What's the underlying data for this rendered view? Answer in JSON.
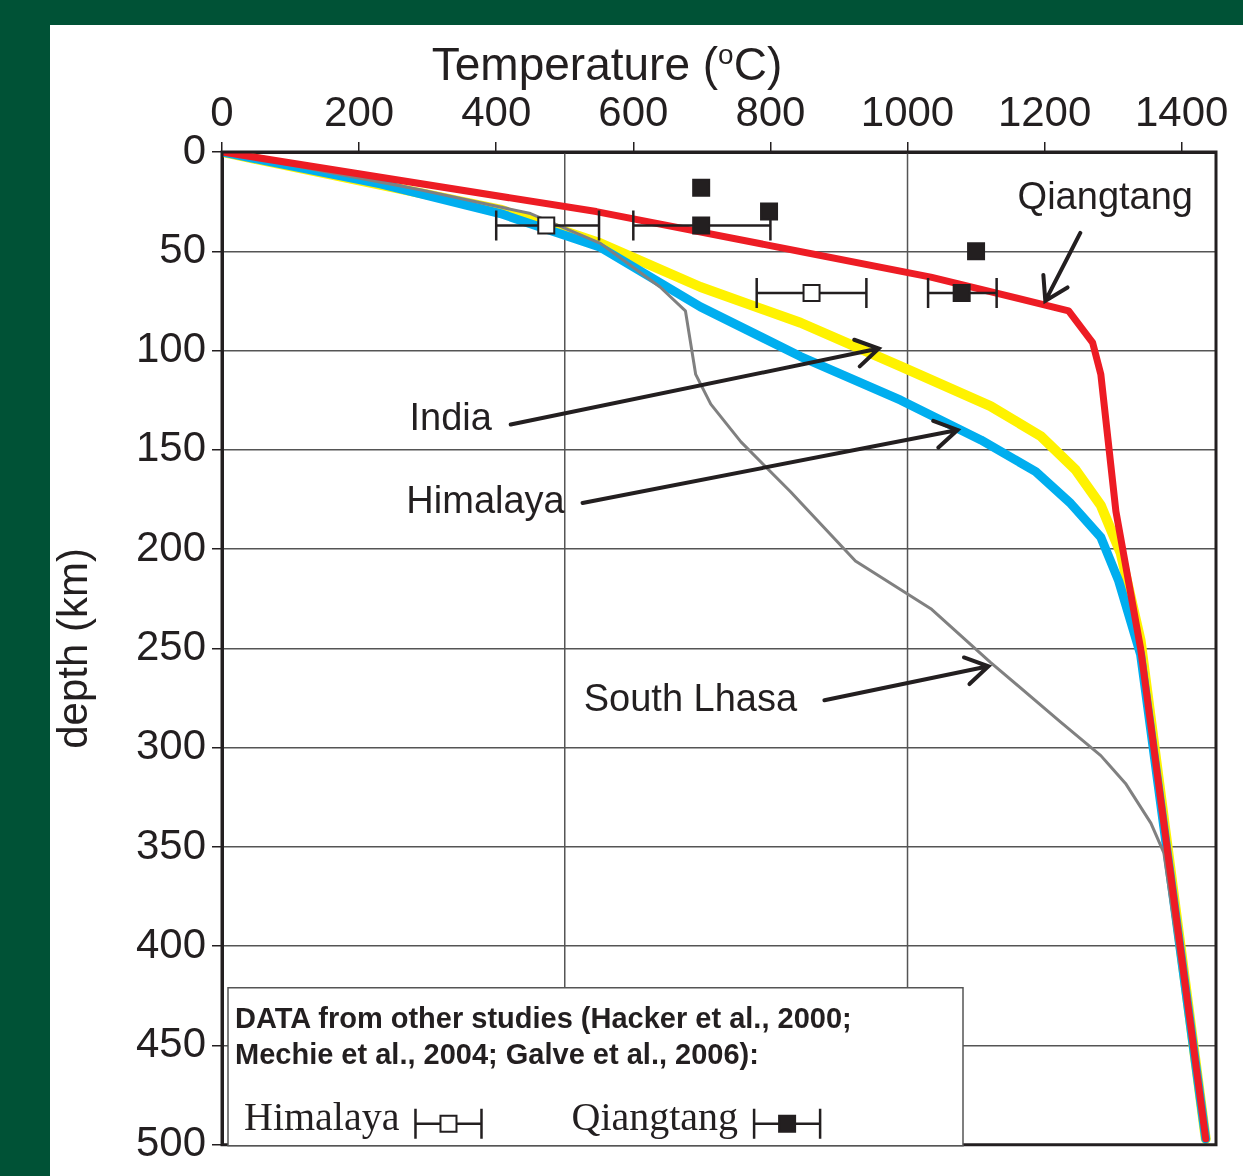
{
  "chart_data": {
    "type": "line",
    "xlabel": "Temperature ($^{o}$C)",
    "ylabel": "depth (km)",
    "xlim": [
      0,
      1450
    ],
    "xticks": [
      0,
      200,
      400,
      600,
      800,
      1000,
      1200,
      1400
    ],
    "ylim": [
      500,
      0
    ],
    "yticks": [
      0,
      50,
      100,
      150,
      200,
      250,
      300,
      350,
      400,
      450,
      500
    ],
    "grid": "y",
    "legend": "bottom left",
    "legend_title": "DATA from other studies (Hacker et al., 2000; Mechie et al., 2004; Galve et al., 2006):",
    "annotations": [
      {
        "text": "India",
        "x": 958,
        "y": 99
      },
      {
        "text": "Himalaya",
        "x": 1073,
        "y": 140
      },
      {
        "text": "South Lhasa",
        "x": 1118,
        "y": 259
      },
      {
        "text": "Qiangtang",
        "x": 1201,
        "y": 75
      }
    ],
    "ref_lines": [
      {
        "axis": "x",
        "value": 500,
        "color": "#555555"
      },
      {
        "axis": "x",
        "value": 1000,
        "color": "#555555"
      }
    ],
    "series": [
      {
        "color": "#fff200",
        "marker": "none",
        "x": [
          0,
          406,
          552,
          698,
          844,
          990,
          1121,
          1194,
          1245,
          1282,
          1311,
          1340,
          1435
        ],
        "values": [
          0,
          29,
          46,
          68,
          86,
          108,
          128,
          143,
          160,
          178,
          202,
          246,
          497
        ]
      },
      {
        "color": "#00aeef",
        "marker": "none",
        "x": [
          0,
          231,
          406,
          552,
          698,
          844,
          990,
          1107,
          1187,
          1238,
          1282,
          1308,
          1340,
          1435
        ],
        "values": [
          0,
          16,
          31,
          48,
          78,
          103,
          125,
          145,
          161,
          177,
          194,
          216,
          253,
          497
        ]
      },
      {
        "color": "#808080",
        "marker": "none",
        "x": [
          0,
          289,
          450,
          552,
          639,
          676,
          691,
          713,
          757,
          829,
          924,
          1034,
          1121,
          1223,
          1282,
          1318,
          1355,
          1374,
          1435
        ],
        "values": [
          0,
          19,
          31,
          46,
          68,
          80,
          112,
          127,
          146,
          171,
          206,
          230,
          257,
          287,
          304,
          318,
          338,
          353,
          497
        ]
      },
      {
        "color": "#ed1c24",
        "marker": "none",
        "x": [
          0,
          546,
          1034,
          1235,
          1270,
          1282,
          1304,
          1340,
          1435
        ],
        "values": [
          0,
          30,
          63,
          80,
          96,
          112,
          181,
          250,
          497
        ]
      },
      {
        "name": "Himalaya",
        "type": "scatter",
        "color": "#ffffff",
        "marker": "square",
        "x": [
          473,
          860
        ],
        "values": [
          37,
          71
        ],
        "xerrors": [
          [
            400,
            550
          ],
          [
            780,
            940
          ]
        ]
      },
      {
        "name": "Qiangtang",
        "type": "scatter",
        "color": "#231f20",
        "marker": "square",
        "x": [
          699,
          798,
          699,
          1100,
          1079
        ],
        "values": [
          18,
          30,
          37,
          50,
          71
        ],
        "xerrors": [
          null,
          null,
          [
            600,
            800
          ],
          null,
          [
            1030,
            1130
          ]
        ]
      }
    ]
  }
}
